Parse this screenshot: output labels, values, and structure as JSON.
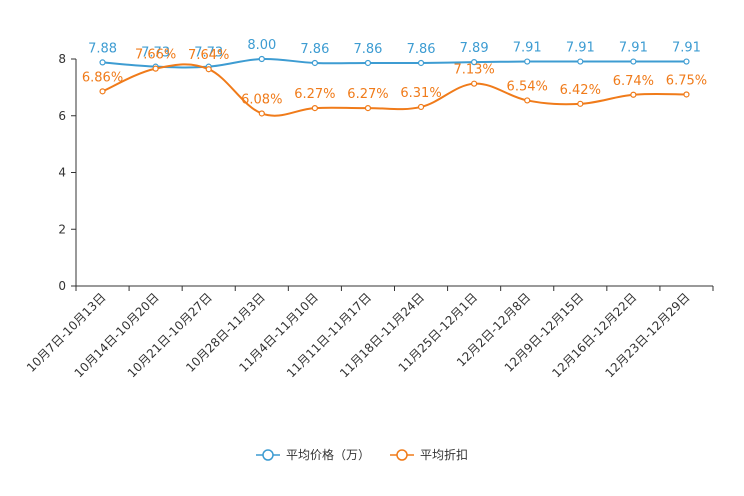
{
  "chart_data": {
    "type": "line",
    "title": "",
    "xlabel": "",
    "ylabel": "",
    "ylim": [
      0,
      8
    ],
    "yticks": [
      0,
      2,
      4,
      6,
      8
    ],
    "grid": false,
    "legend_position": "bottom-center",
    "categories": [
      "10月7日-10月13日",
      "10月14日-10月20日",
      "10月21日-10月27日",
      "10月28日-11月3日",
      "11月4日-11月10日",
      "11月11日-11月17日",
      "11月18日-11月24日",
      "11月25日-12月1日",
      "12月2日-12月8日",
      "12月9日-12月15日",
      "12月16日-12月22日",
      "12月23日-12月29日"
    ],
    "series": [
      {
        "name": "平均价格（万）",
        "color": "#3d9cd2",
        "values": [
          7.88,
          7.73,
          7.73,
          8.0,
          7.86,
          7.86,
          7.86,
          7.89,
          7.91,
          7.91,
          7.91,
          7.91
        ],
        "labels": [
          "7.88",
          "7.73",
          "7.73",
          "8.00",
          "7.86",
          "7.86",
          "7.86",
          "7.89",
          "7.91",
          "7.91",
          "7.91",
          "7.91"
        ]
      },
      {
        "name": "平均折扣",
        "color": "#f07b1a",
        "values": [
          6.86,
          7.66,
          7.64,
          6.08,
          6.27,
          6.27,
          6.31,
          7.13,
          6.54,
          6.42,
          6.74,
          6.75
        ],
        "labels": [
          "6.86%",
          "7.66%",
          "7.64%",
          "6.08%",
          "6.27%",
          "6.27%",
          "6.31%",
          "7.13%",
          "6.54%",
          "6.42%",
          "6.74%",
          "6.75%"
        ]
      }
    ]
  }
}
